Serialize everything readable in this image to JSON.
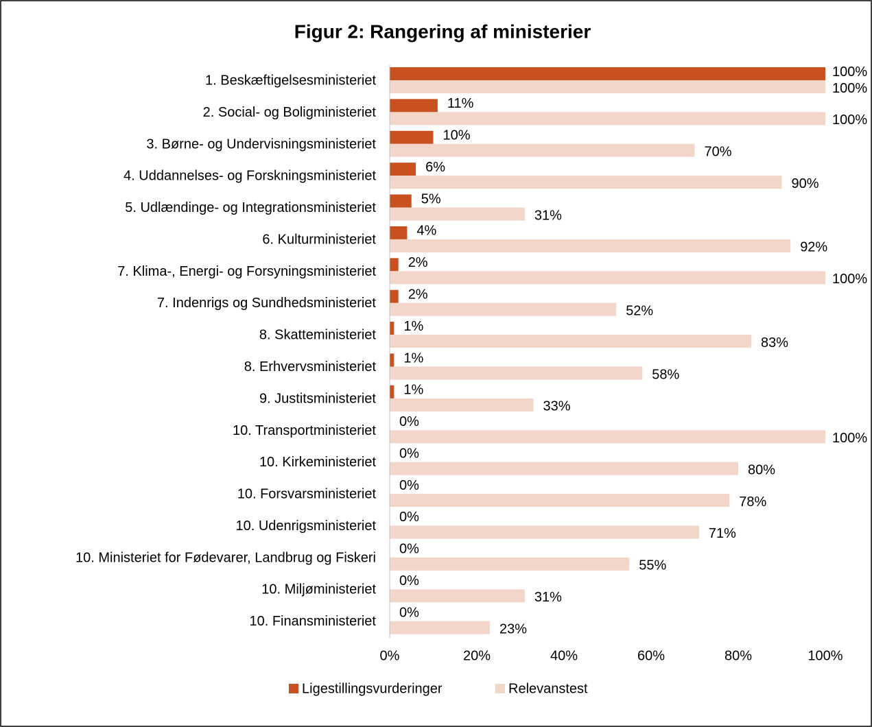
{
  "chart_data": {
    "type": "bar",
    "orientation": "horizontal",
    "title": "Figur 2: Rangering af ministerier",
    "categories": [
      "1. Beskæftigelsesministeriet",
      "2. Social- og Boligministeriet",
      "3. Børne- og Undervisningsministeriet",
      "4. Uddannelses- og Forskningsministeriet",
      "5. Udlændinge- og Integrationsministeriet",
      "6. Kulturministeriet",
      "7. Klima-, Energi- og Forsyningsministeriet",
      "7. Indenrigs og Sundhedsministeriet",
      "8. Skatteministeriet",
      "8. Erhvervsministeriet",
      "9. Justitsministeriet",
      "10. Transportministeriet",
      "10. Kirkeministeriet",
      "10. Forsvarsministeriet",
      "10. Udenrigsministeriet",
      "10. Ministeriet for Fødevarer, Landbrug og Fiskeri",
      "10. Miljøministeriet",
      "10. Finansministeriet"
    ],
    "series": [
      {
        "name": "Ligestillingsvurderinger",
        "color": "#c9511f",
        "values": [
          100,
          11,
          10,
          6,
          5,
          4,
          2,
          2,
          1,
          1,
          1,
          0,
          0,
          0,
          0,
          0,
          0,
          0
        ],
        "value_labels": [
          "100%",
          "11%",
          "10%",
          "6%",
          "5%",
          "4%",
          "2%",
          "2%",
          "1%",
          "1%",
          "1%",
          "0%",
          "0%",
          "0%",
          "0%",
          "0%",
          "0%",
          "0%"
        ]
      },
      {
        "name": "Relevanstest",
        "color": "#f3d6ca",
        "values": [
          100,
          100,
          70,
          90,
          31,
          92,
          100,
          52,
          83,
          58,
          33,
          100,
          80,
          78,
          71,
          55,
          31,
          23
        ],
        "value_labels": [
          "100%",
          "100%",
          "70%",
          "90%",
          "31%",
          "92%",
          "100%",
          "52%",
          "83%",
          "58%",
          "33%",
          "100%",
          "80%",
          "78%",
          "71%",
          "55%",
          "31%",
          "23%"
        ]
      }
    ],
    "xlim": [
      0,
      100
    ],
    "xticks": [
      {
        "value": 0,
        "label": "0%"
      },
      {
        "value": 20,
        "label": "20%"
      },
      {
        "value": 40,
        "label": "40%"
      },
      {
        "value": 60,
        "label": "60%"
      },
      {
        "value": 80,
        "label": "80%"
      },
      {
        "value": 100,
        "label": "100%"
      }
    ],
    "legend": "bottom"
  }
}
